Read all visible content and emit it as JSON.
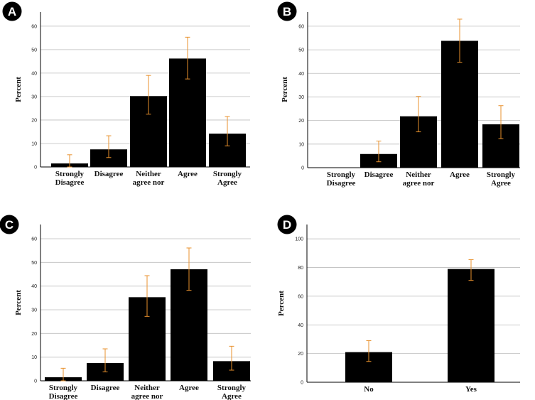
{
  "style": {
    "bar_color": "#000000",
    "error_color": "#E8912D",
    "grid_color": "#BDBDBD",
    "axis_color": "#000000",
    "badge_color": "#000000"
  },
  "chart_data": [
    {
      "panel": "A",
      "type": "bar",
      "ylabel": "Percent",
      "ylim": [
        0,
        66
      ],
      "yticks": [
        "0",
        "10",
        "20",
        "30",
        "40",
        "50",
        "60"
      ],
      "categories": [
        [
          "Strongly",
          "Disagree"
        ],
        [
          "Disagree"
        ],
        [
          "Neither",
          "agree nor"
        ],
        [
          "Agree"
        ],
        [
          "Strongly",
          "Agree"
        ]
      ],
      "values": [
        1.5,
        7.5,
        30.2,
        46.2,
        14.2
      ],
      "err_low": [
        0,
        4,
        22.5,
        37.5,
        9
      ],
      "err_high": [
        5.2,
        13.3,
        39,
        55.3,
        21.5
      ]
    },
    {
      "panel": "B",
      "type": "bar",
      "ylabel": "Percent",
      "ylim": [
        0,
        66
      ],
      "yticks": [
        "0",
        "10",
        "20",
        "30",
        "40",
        "50",
        "60"
      ],
      "categories": [
        [
          "Strongly",
          "Disagree"
        ],
        [
          "Disagree"
        ],
        [
          "Neither",
          "agree nor"
        ],
        [
          "Agree"
        ],
        [
          "Strongly",
          "Agree"
        ]
      ],
      "values": [
        0,
        5.8,
        21.8,
        53.8,
        18.4
      ],
      "err_low": [
        null,
        2.5,
        15.2,
        44.7,
        12.3
      ],
      "err_high": [
        null,
        11.3,
        30.2,
        63,
        26.3
      ]
    },
    {
      "panel": "C",
      "type": "bar",
      "ylabel": "Percent",
      "ylim": [
        0,
        66
      ],
      "yticks": [
        "0",
        "10",
        "20",
        "30",
        "40",
        "50",
        "60"
      ],
      "categories": [
        [
          "Strongly",
          "Disagree"
        ],
        [
          "Disagree"
        ],
        [
          "Neither",
          "agree nor"
        ],
        [
          "Agree"
        ],
        [
          "Strongly",
          "Agree"
        ]
      ],
      "values": [
        1.5,
        7.5,
        35.3,
        47.1,
        8.3
      ],
      "err_low": [
        0,
        3.8,
        27.2,
        38.2,
        4.5
      ],
      "err_high": [
        5.3,
        13.5,
        44.4,
        56.1,
        14.6
      ]
    },
    {
      "panel": "D",
      "type": "bar",
      "ylabel": "Percent",
      "ylim": [
        0,
        110
      ],
      "yticks": [
        "0",
        "20",
        "40",
        "60",
        "80",
        "100"
      ],
      "categories": [
        [
          "No"
        ],
        [
          "Yes"
        ]
      ],
      "values": [
        21,
        79
      ],
      "err_low": [
        14.5,
        71
      ],
      "err_high": [
        29,
        85.5
      ]
    }
  ]
}
